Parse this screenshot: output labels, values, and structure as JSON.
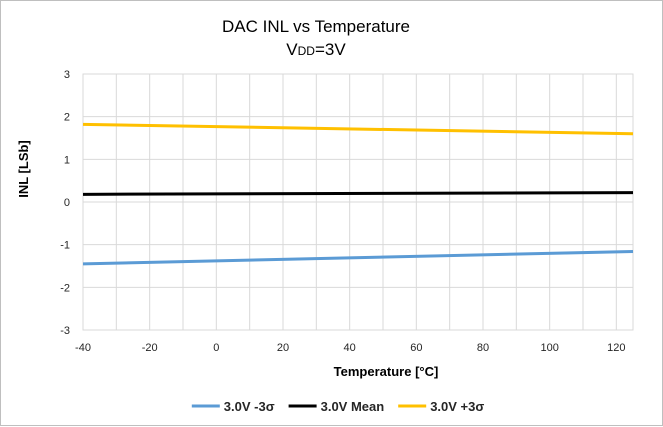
{
  "chart_data": {
    "type": "line",
    "title": "DAC INL vs Temperature",
    "subtitle": {
      "main": "V",
      "sub": "DD",
      "rest": "=3V"
    },
    "xlabel": "Temperature [°C]",
    "ylabel": "INL [LSb]",
    "xlim": [
      -40,
      125
    ],
    "ylim": [
      -3,
      3
    ],
    "x_ticks": [
      -40,
      -20,
      0,
      20,
      40,
      60,
      80,
      100,
      120
    ],
    "y_ticks": [
      3,
      2,
      1,
      0,
      -1,
      -2,
      -3
    ],
    "grid": true,
    "legend_position": "bottom",
    "series": [
      {
        "name": "3.0V -3σ",
        "color": "#5b9bd5",
        "x": [
          -40,
          125
        ],
        "y": [
          -1.45,
          -1.16
        ]
      },
      {
        "name": "3.0V Mean",
        "color": "#000000",
        "x": [
          -40,
          125
        ],
        "y": [
          0.18,
          0.22
        ]
      },
      {
        "name": "3.0V +3σ",
        "color": "#ffc000",
        "x": [
          -40,
          125
        ],
        "y": [
          1.82,
          1.6
        ]
      }
    ]
  }
}
